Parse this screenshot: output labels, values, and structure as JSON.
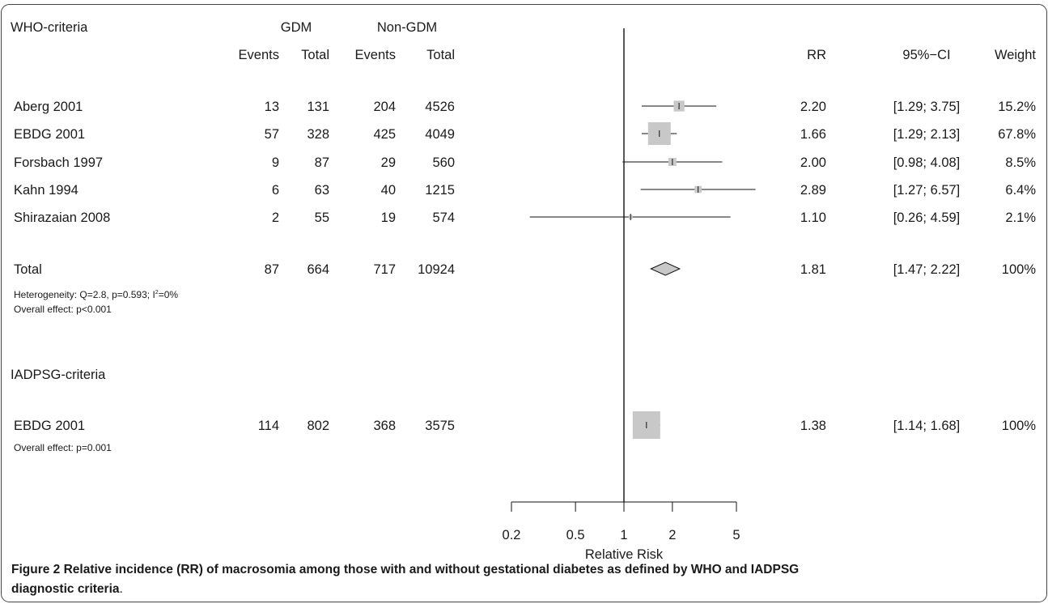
{
  "chart_data": {
    "type": "forest",
    "xlabel": "Relative Risk",
    "x_scale": "log",
    "xlim": [
      0.2,
      5
    ],
    "xticks": [
      "0.2",
      "0.5",
      "1",
      "2",
      "5"
    ],
    "reference_line": 1,
    "column_headers": {
      "group1": "GDM",
      "group2": "Non-GDM",
      "events": "Events",
      "total": "Total",
      "rr": "RR",
      "ci": "95%−CI",
      "weight": "Weight"
    },
    "subgroups": [
      {
        "label": "WHO-criteria",
        "studies": [
          {
            "name": "Aberg 2001",
            "e1": "13",
            "n1": "131",
            "e2": "204",
            "n2": "4526",
            "rr": 2.2,
            "lo": 1.29,
            "hi": 3.75,
            "rr_text": "2.20",
            "ci_text": "[1.29; 3.75]",
            "weight_text": "15.2%",
            "weight": 15.2
          },
          {
            "name": "EBDG 2001",
            "e1": "57",
            "n1": "328",
            "e2": "425",
            "n2": "4049",
            "rr": 1.66,
            "lo": 1.29,
            "hi": 2.13,
            "rr_text": "1.66",
            "ci_text": "[1.29; 2.13]",
            "weight_text": "67.8%",
            "weight": 67.8
          },
          {
            "name": "Forsbach 1997",
            "e1": "9",
            "n1": "87",
            "e2": "29",
            "n2": "560",
            "rr": 2.0,
            "lo": 0.98,
            "hi": 4.08,
            "rr_text": "2.00",
            "ci_text": "[0.98; 4.08]",
            "weight_text": "8.5%",
            "weight": 8.5
          },
          {
            "name": "Kahn 1994",
            "e1": "6",
            "n1": "63",
            "e2": "40",
            "n2": "1215",
            "rr": 2.89,
            "lo": 1.27,
            "hi": 6.57,
            "rr_text": "2.89",
            "ci_text": "[1.27; 6.57]",
            "weight_text": "6.4%",
            "weight": 6.4
          },
          {
            "name": "Shirazaian 2008",
            "e1": "2",
            "n1": "55",
            "e2": "19",
            "n2": "574",
            "rr": 1.1,
            "lo": 0.26,
            "hi": 4.59,
            "rr_text": "1.10",
            "ci_text": "[0.26; 4.59]",
            "weight_text": "2.1%",
            "weight": 2.1
          }
        ],
        "total": {
          "name": "Total",
          "e1": "87",
          "n1": "664",
          "e2": "717",
          "n2": "10924",
          "rr": 1.81,
          "lo": 1.47,
          "hi": 2.22,
          "rr_text": "1.81",
          "ci_text": "[1.47; 2.22]",
          "weight_text": "100%"
        },
        "heterogeneity_prefix": "Heterogeneity: Q=2.8, p=0.593;  I",
        "heterogeneity_sup": "2",
        "heterogeneity_suffix": "=0%",
        "overall_effect": "Overall effect: p<0.001"
      },
      {
        "label": "IADPSG-criteria",
        "studies": [
          {
            "name": "EBDG 2001",
            "e1": "114",
            "n1": "802",
            "e2": "368",
            "n2": "3575",
            "rr": 1.38,
            "lo": 1.14,
            "hi": 1.68,
            "rr_text": "1.38",
            "ci_text": "[1.14; 1.68]",
            "weight_text": "100%",
            "weight": 100
          }
        ],
        "overall_effect": "Overall effect: p=0.001"
      }
    ]
  },
  "caption": {
    "label": "Figure 2",
    "text": " Relative incidence (RR) of macrosomia among those with and without gestational diabetes as defined by WHO and IADPSG diagnostic criteria",
    "period": "."
  }
}
